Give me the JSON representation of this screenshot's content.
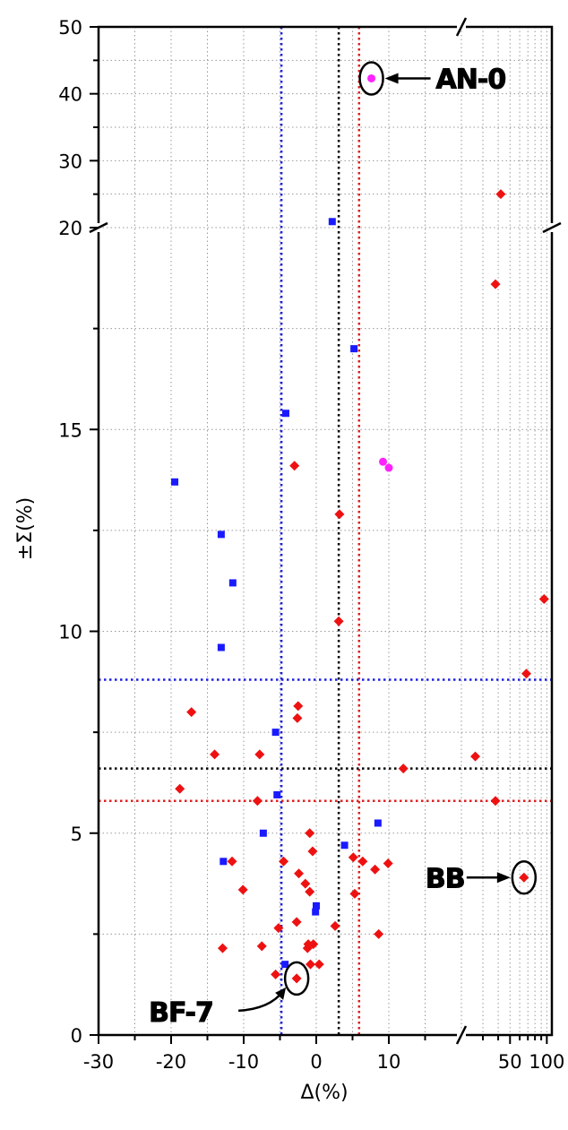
{
  "chart_data": {
    "type": "scatter",
    "title": "",
    "xlabel": "Δ(%)",
    "ylabel": "±Σ(%)",
    "x_axis": {
      "segments": [
        {
          "scale": "linear",
          "range": [
            -30,
            20
          ],
          "ticks": [
            "-30",
            "-20",
            "-10",
            "0",
            "10"
          ]
        },
        {
          "scale": "log",
          "range": [
            20,
            110
          ],
          "ticks": [
            "50",
            "100"
          ]
        }
      ],
      "break_at": 20
    },
    "y_axis": {
      "segments": [
        {
          "scale": "linear",
          "range": [
            0,
            20
          ],
          "ticks": [
            "0",
            "5",
            "10",
            "15",
            "20"
          ]
        },
        {
          "scale": "linear",
          "range": [
            20,
            50
          ],
          "ticks": [
            "20",
            "30",
            "40",
            "50"
          ]
        }
      ],
      "break_at": 20
    },
    "grid": true,
    "reference_lines": {
      "vertical": [
        {
          "x": -4.8,
          "color": "#1f1fe0"
        },
        {
          "x": 3.1,
          "color": "#000000"
        },
        {
          "x": 5.9,
          "color": "#e01f1f"
        }
      ],
      "horizontal": [
        {
          "y": 8.8,
          "color": "#1f1fe0"
        },
        {
          "y": 6.6,
          "color": "#000000"
        },
        {
          "y": 5.8,
          "color": "#e01f1f"
        }
      ]
    },
    "series": [
      {
        "marker": "square",
        "color": "#1a1aff",
        "points": [
          [
            2.2,
            20.9
          ],
          [
            5.2,
            17.0
          ],
          [
            -4.2,
            15.4
          ],
          [
            -19.5,
            13.7
          ],
          [
            -13.1,
            12.4
          ],
          [
            -11.5,
            11.2
          ],
          [
            -13.1,
            9.6
          ],
          [
            -5.6,
            7.5
          ],
          [
            -5.4,
            5.95
          ],
          [
            -7.3,
            5.0
          ],
          [
            8.5,
            5.25
          ],
          [
            3.9,
            4.7
          ],
          [
            -12.8,
            4.3
          ],
          [
            0.0,
            3.2
          ],
          [
            -0.1,
            3.05
          ],
          [
            -4.3,
            1.75
          ]
        ]
      },
      {
        "marker": "diamond",
        "color": "#ee1111",
        "points": [
          [
            42,
            25.0
          ],
          [
            38,
            18.6
          ],
          [
            -3.0,
            14.1
          ],
          [
            3.2,
            12.9
          ],
          [
            95,
            10.8
          ],
          [
            3.1,
            10.25
          ],
          [
            68,
            8.95
          ],
          [
            -2.5,
            8.15
          ],
          [
            -2.6,
            7.85
          ],
          [
            -17.2,
            8.0
          ],
          [
            -14.0,
            6.95
          ],
          [
            -7.8,
            6.95
          ],
          [
            12.0,
            6.6
          ],
          [
            26,
            6.9
          ],
          [
            -18.8,
            6.1
          ],
          [
            -8.1,
            5.8
          ],
          [
            38,
            5.8
          ],
          [
            -0.9,
            5.0
          ],
          [
            -0.5,
            4.55
          ],
          [
            5.1,
            4.4
          ],
          [
            6.4,
            4.3
          ],
          [
            9.9,
            4.25
          ],
          [
            -11.6,
            4.3
          ],
          [
            -4.5,
            4.3
          ],
          [
            8.1,
            4.1
          ],
          [
            -2.4,
            4.0
          ],
          [
            -1.5,
            3.75
          ],
          [
            -0.9,
            3.55
          ],
          [
            5.3,
            3.5
          ],
          [
            -10.1,
            3.6
          ],
          [
            -2.7,
            2.8
          ],
          [
            2.6,
            2.7
          ],
          [
            -5.2,
            2.65
          ],
          [
            8.6,
            2.5
          ],
          [
            -1.1,
            2.25
          ],
          [
            -0.4,
            2.25
          ],
          [
            -7.5,
            2.2
          ],
          [
            -12.9,
            2.15
          ],
          [
            -1.2,
            2.15
          ],
          [
            -0.8,
            1.75
          ],
          [
            0.4,
            1.75
          ],
          [
            -5.6,
            1.5
          ],
          [
            -2.7,
            1.4
          ],
          [
            65,
            3.9
          ]
        ]
      },
      {
        "marker": "circle",
        "color": "#ff22ff",
        "points": [
          [
            7.6,
            42.3
          ],
          [
            9.2,
            14.2
          ],
          [
            10.0,
            14.05
          ]
        ]
      }
    ],
    "annotations": [
      {
        "label": "AN-0",
        "target": [
          7.6,
          42.3
        ]
      },
      {
        "label": "BB",
        "target": [
          65,
          3.9
        ]
      },
      {
        "label": "BF-7",
        "target": [
          -2.7,
          1.4
        ]
      }
    ]
  }
}
